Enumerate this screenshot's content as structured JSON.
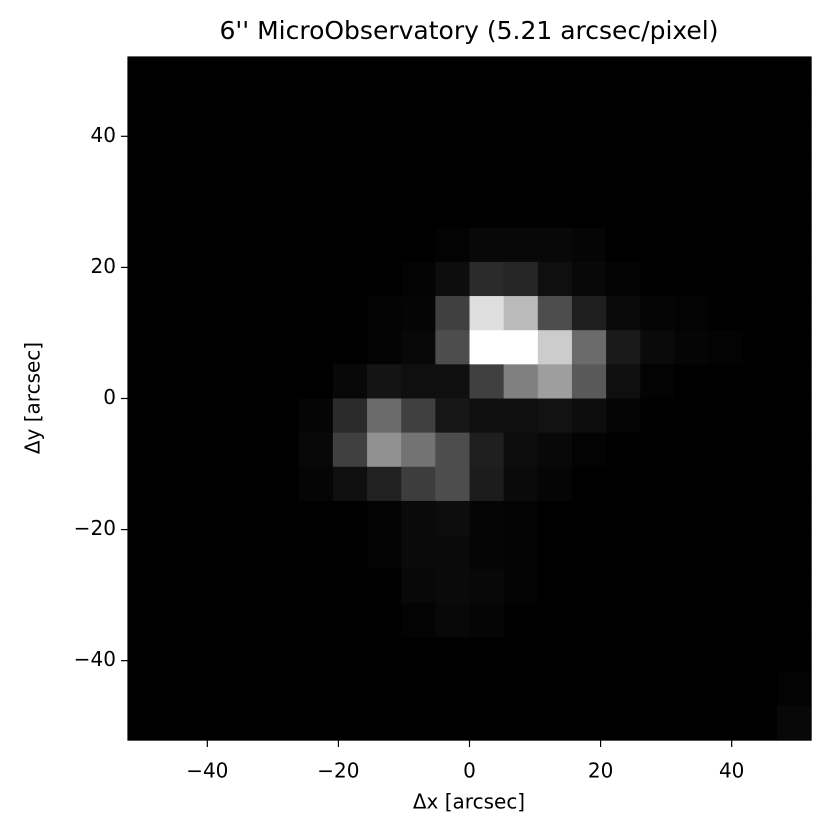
{
  "chart_data": {
    "type": "heatmap",
    "title": "6'' MicroObservatory (5.21 arcsec/pixel)",
    "x_label": "Δx [arcsec]",
    "y_label": "Δy [arcsec]",
    "colormap": "gray",
    "xlim": [
      -52.1,
      52.1
    ],
    "ylim": [
      -52.1,
      52.1
    ],
    "xticks": [
      {
        "value": -40,
        "label": "−40"
      },
      {
        "value": -20,
        "label": "−20"
      },
      0,
      20,
      40
    ],
    "yticks": [
      {
        "value": -40,
        "label": "−40"
      },
      {
        "value": -20,
        "label": "−20"
      },
      0,
      20,
      40
    ],
    "values": [
      [
        0,
        0,
        0,
        0,
        0,
        0,
        0,
        0,
        0,
        0,
        0,
        0,
        0,
        0,
        0,
        0,
        0,
        0,
        0,
        0
      ],
      [
        0,
        0,
        0,
        0,
        0,
        0,
        0,
        0,
        0,
        0,
        0,
        0,
        0,
        0,
        0,
        0,
        0,
        0,
        0,
        0
      ],
      [
        0,
        0,
        0,
        0,
        0,
        0,
        0,
        0,
        0,
        0,
        0,
        0,
        0,
        0,
        0,
        0,
        0,
        0,
        0,
        0
      ],
      [
        0,
        0,
        0,
        0,
        0,
        0,
        0,
        0,
        0,
        0,
        0,
        0,
        0,
        0,
        0,
        0,
        0,
        0,
        0,
        0
      ],
      [
        0,
        0,
        0,
        0,
        0,
        0,
        0,
        0,
        0,
        0,
        0,
        0,
        0,
        0,
        0,
        0,
        0,
        0,
        0,
        0
      ],
      [
        0,
        0,
        0,
        0,
        0,
        0,
        0,
        0,
        0,
        0.01,
        0.03,
        0.03,
        0.03,
        0.02,
        0,
        0,
        0,
        0,
        0,
        0
      ],
      [
        0,
        0,
        0,
        0,
        0,
        0,
        0,
        0,
        0.01,
        0.05,
        0.17,
        0.15,
        0.06,
        0.03,
        0.01,
        0,
        0,
        0,
        0,
        0
      ],
      [
        0,
        0,
        0,
        0,
        0,
        0,
        0,
        0.01,
        0.02,
        0.25,
        0.87,
        0.73,
        0.3,
        0.12,
        0.04,
        0.02,
        0.01,
        0,
        0,
        0
      ],
      [
        0,
        0,
        0,
        0,
        0,
        0,
        0,
        0.01,
        0.03,
        0.3,
        1.0,
        1.0,
        0.8,
        0.42,
        0.1,
        0.04,
        0.02,
        0.01,
        0,
        0
      ],
      [
        0,
        0,
        0,
        0,
        0,
        0,
        0.03,
        0.08,
        0.06,
        0.06,
        0.25,
        0.5,
        0.62,
        0.35,
        0.06,
        0.01,
        0,
        0,
        0,
        0
      ],
      [
        0,
        0,
        0,
        0,
        0,
        0.02,
        0.17,
        0.42,
        0.25,
        0.09,
        0.06,
        0.06,
        0.07,
        0.05,
        0.02,
        0,
        0,
        0,
        0,
        0
      ],
      [
        0,
        0,
        0,
        0,
        0,
        0.03,
        0.25,
        0.57,
        0.45,
        0.3,
        0.12,
        0.05,
        0.03,
        0.01,
        0,
        0,
        0,
        0,
        0,
        0
      ],
      [
        0,
        0,
        0,
        0,
        0,
        0.02,
        0.06,
        0.13,
        0.24,
        0.3,
        0.11,
        0.04,
        0.02,
        0,
        0,
        0,
        0,
        0,
        0,
        0
      ],
      [
        0,
        0,
        0,
        0,
        0,
        0,
        0,
        0.01,
        0.04,
        0.05,
        0.02,
        0.01,
        0,
        0,
        0,
        0,
        0,
        0,
        0,
        0
      ],
      [
        0,
        0,
        0,
        0,
        0,
        0,
        0,
        0.01,
        0.04,
        0.04,
        0.02,
        0.01,
        0,
        0,
        0,
        0,
        0,
        0,
        0,
        0
      ],
      [
        0,
        0,
        0,
        0,
        0,
        0,
        0,
        0,
        0.03,
        0.04,
        0.03,
        0.01,
        0,
        0,
        0,
        0,
        0,
        0,
        0,
        0
      ],
      [
        0,
        0,
        0,
        0,
        0,
        0,
        0,
        0,
        0.01,
        0.03,
        0.02,
        0,
        0,
        0,
        0,
        0,
        0,
        0,
        0,
        0
      ],
      [
        0,
        0,
        0,
        0,
        0,
        0,
        0,
        0,
        0,
        0,
        0,
        0,
        0,
        0,
        0,
        0,
        0,
        0,
        0,
        0
      ],
      [
        0,
        0,
        0,
        0,
        0,
        0,
        0,
        0,
        0,
        0,
        0,
        0,
        0,
        0,
        0,
        0,
        0,
        0,
        0,
        0.01
      ],
      [
        0,
        0,
        0,
        0,
        0,
        0,
        0,
        0,
        0,
        0,
        0,
        0,
        0,
        0,
        0,
        0,
        0,
        0,
        0,
        0.03
      ]
    ]
  }
}
